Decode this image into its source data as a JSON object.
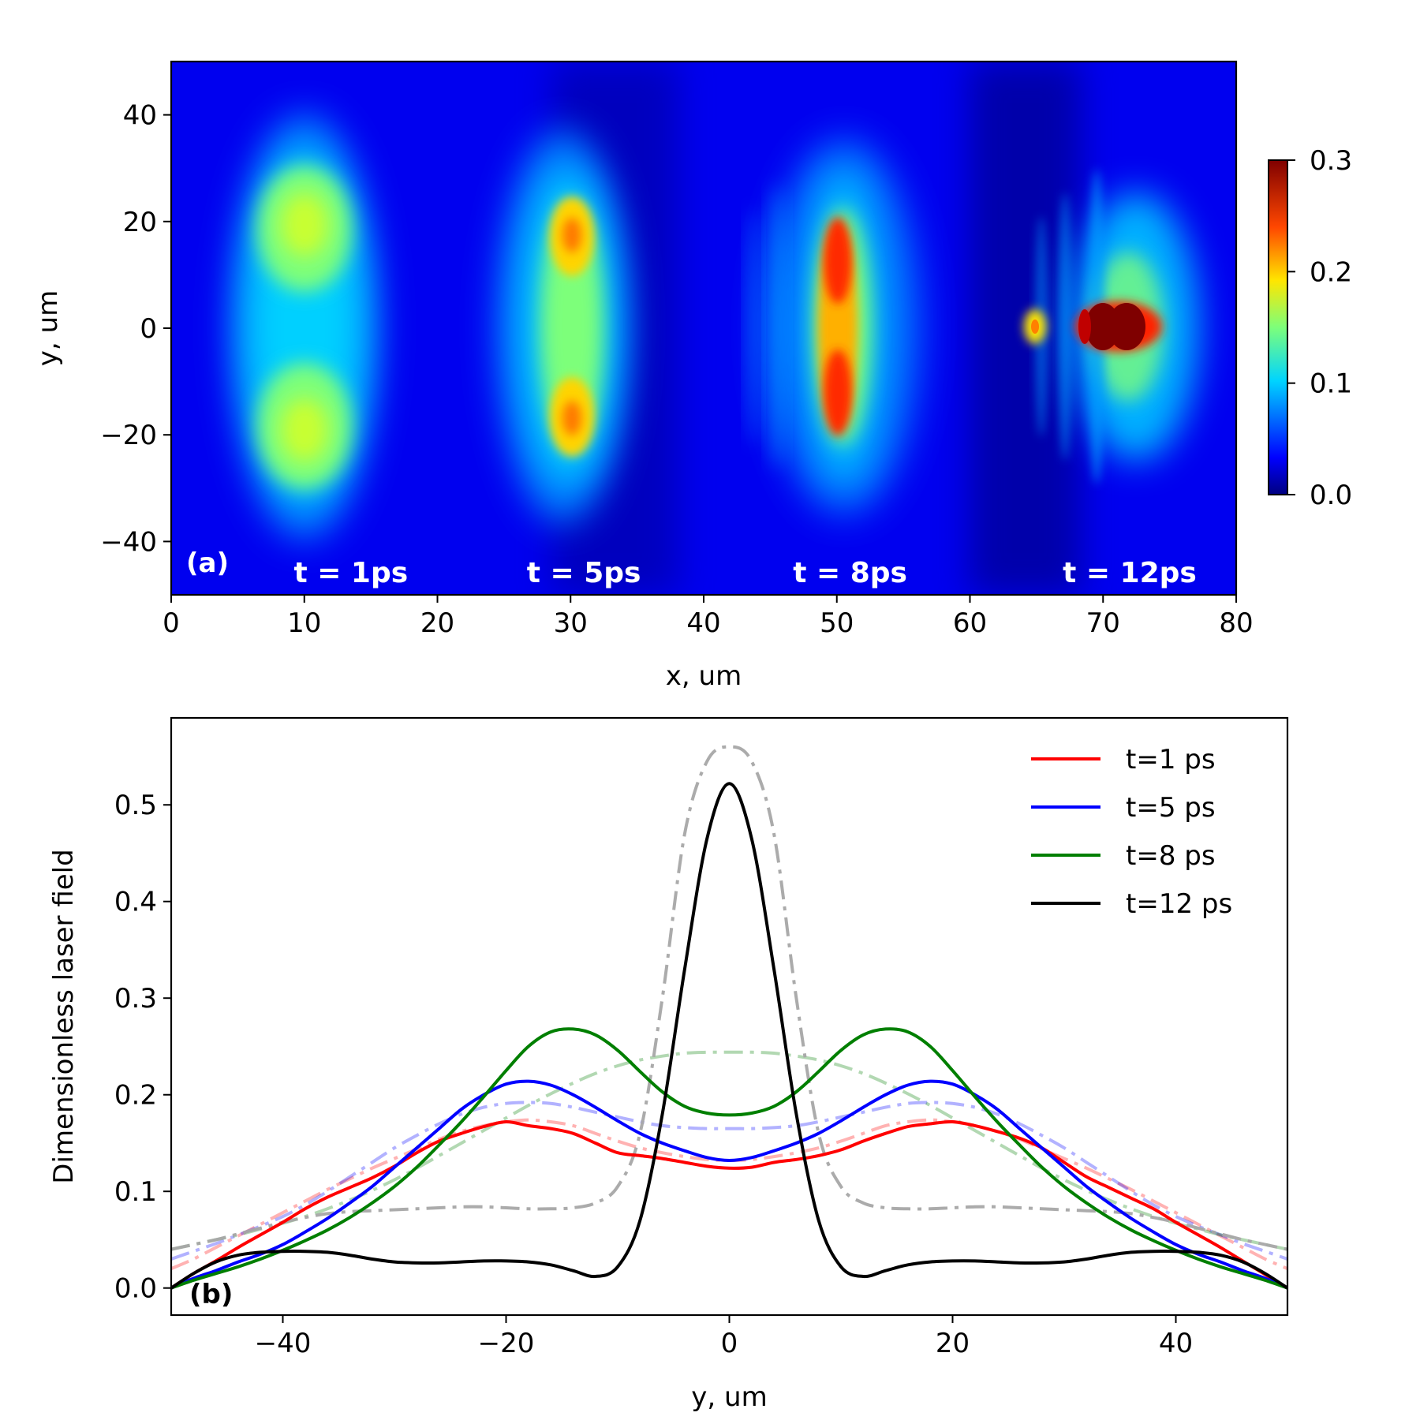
{
  "colors": {
    "t1": "#ff0000",
    "t5": "#0000ff",
    "t8": "#007f00",
    "t12": "#000000",
    "dash_gray": "#a6a6a6",
    "annot_white": "#ffffff"
  },
  "chart_data": [
    {
      "type": "heatmap",
      "panel_label": "(a)",
      "xlabel": "x, um",
      "ylabel": "y, um",
      "xlim": [
        0,
        80
      ],
      "ylim": [
        -50,
        50
      ],
      "xticks": [
        0,
        10,
        20,
        30,
        40,
        50,
        60,
        70,
        80
      ],
      "xtick_labels": [
        "0",
        "10",
        "20",
        "30",
        "40",
        "50",
        "60",
        "70",
        "80"
      ],
      "yticks": [
        40,
        20,
        0,
        -20,
        -40
      ],
      "ytick_labels": [
        "40",
        "20",
        "0",
        "−20",
        "−40"
      ],
      "colormap": "jet",
      "colorbar": {
        "range": [
          0.0,
          0.3
        ],
        "ticks": [
          0.0,
          0.1,
          0.2,
          0.3
        ],
        "tick_labels": [
          "0.0",
          "0.1",
          "0.2",
          "0.3"
        ]
      },
      "annotations": [
        {
          "text": "t = 1ps",
          "x": 13.5
        },
        {
          "text": "t = 5ps",
          "x": 31
        },
        {
          "text": "t = 8ps",
          "x": 51
        },
        {
          "text": "t = 12ps",
          "x": 72
        }
      ],
      "pulses": [
        {
          "t": "1 ps",
          "x_center": 10,
          "lobe_y": [
            20,
            -20
          ],
          "peak": 0.17
        },
        {
          "t": "5 ps",
          "x_center": 30,
          "lobe_y": [
            17,
            -17
          ],
          "peak": 0.22
        },
        {
          "t": "8 ps",
          "x_center": 50,
          "lobe_y": [
            13,
            -13
          ],
          "peak": 0.27
        },
        {
          "t": "12 ps",
          "x_center": 71,
          "lobe_y": [
            0
          ],
          "peak": 0.52
        }
      ]
    },
    {
      "type": "line",
      "panel_label": "(b)",
      "xlabel": "y, um",
      "ylabel": "Dimensionless laser field",
      "xlim": [
        -50,
        50
      ],
      "ylim": [
        -0.028,
        0.59
      ],
      "xticks": [
        -40,
        -20,
        0,
        20,
        40
      ],
      "xtick_labels": [
        "−40",
        "−20",
        "0",
        "20",
        "40"
      ],
      "yticks": [
        0.0,
        0.1,
        0.2,
        0.3,
        0.4,
        0.5
      ],
      "ytick_labels": [
        "0.0",
        "0.1",
        "0.2",
        "0.3",
        "0.4",
        "0.5"
      ],
      "legend": "top-right",
      "x": [
        -50,
        -48,
        -46,
        -44,
        -42,
        -40,
        -38,
        -36,
        -34,
        -32,
        -30,
        -28,
        -26,
        -24,
        -22,
        -20,
        -18,
        -16,
        -14,
        -12,
        -10,
        -8,
        -6,
        -4,
        -2,
        0,
        2,
        4,
        6,
        8,
        10,
        12,
        14,
        16,
        18,
        20,
        22,
        24,
        26,
        28,
        30,
        32,
        34,
        36,
        38,
        40,
        42,
        44,
        46,
        48,
        50
      ],
      "series": [
        {
          "name": "t=1 ps",
          "style": "solid",
          "color_key": "t1",
          "values": [
            0.0,
            0.015,
            0.028,
            0.042,
            0.055,
            0.068,
            0.082,
            0.094,
            0.104,
            0.114,
            0.126,
            0.14,
            0.152,
            0.16,
            0.167,
            0.172,
            0.168,
            0.165,
            0.16,
            0.15,
            0.14,
            0.137,
            0.134,
            0.13,
            0.126,
            0.124,
            0.125,
            0.13,
            0.133,
            0.137,
            0.143,
            0.152,
            0.16,
            0.167,
            0.17,
            0.172,
            0.168,
            0.162,
            0.155,
            0.145,
            0.13,
            0.115,
            0.104,
            0.093,
            0.082,
            0.068,
            0.055,
            0.042,
            0.028,
            0.014,
            0.0
          ]
        },
        {
          "name": "t=5 ps",
          "style": "solid",
          "color_key": "t5",
          "values": [
            0.0,
            0.01,
            0.018,
            0.027,
            0.035,
            0.045,
            0.058,
            0.072,
            0.088,
            0.105,
            0.125,
            0.145,
            0.165,
            0.185,
            0.2,
            0.211,
            0.214,
            0.21,
            0.2,
            0.187,
            0.173,
            0.16,
            0.15,
            0.142,
            0.135,
            0.132,
            0.135,
            0.142,
            0.15,
            0.16,
            0.173,
            0.187,
            0.2,
            0.21,
            0.214,
            0.211,
            0.2,
            0.185,
            0.165,
            0.145,
            0.125,
            0.105,
            0.088,
            0.072,
            0.058,
            0.045,
            0.035,
            0.027,
            0.018,
            0.01,
            0.0
          ]
        },
        {
          "name": "t=8 ps",
          "style": "solid",
          "color_key": "t8",
          "values": [
            0.0,
            0.008,
            0.015,
            0.022,
            0.03,
            0.039,
            0.049,
            0.06,
            0.073,
            0.088,
            0.105,
            0.125,
            0.148,
            0.172,
            0.198,
            0.225,
            0.25,
            0.265,
            0.268,
            0.262,
            0.246,
            0.224,
            0.203,
            0.188,
            0.181,
            0.179,
            0.181,
            0.188,
            0.203,
            0.224,
            0.246,
            0.262,
            0.268,
            0.265,
            0.25,
            0.225,
            0.198,
            0.172,
            0.148,
            0.125,
            0.105,
            0.088,
            0.073,
            0.06,
            0.049,
            0.039,
            0.03,
            0.022,
            0.015,
            0.008,
            0.0
          ]
        },
        {
          "name": "t=12 ps",
          "style": "solid",
          "color_key": "t12",
          "values": [
            0.0,
            0.015,
            0.027,
            0.034,
            0.037,
            0.038,
            0.038,
            0.037,
            0.034,
            0.03,
            0.027,
            0.026,
            0.026,
            0.027,
            0.028,
            0.028,
            0.027,
            0.024,
            0.018,
            0.012,
            0.022,
            0.07,
            0.18,
            0.33,
            0.465,
            0.522,
            0.465,
            0.33,
            0.18,
            0.07,
            0.022,
            0.012,
            0.018,
            0.024,
            0.027,
            0.028,
            0.028,
            0.027,
            0.026,
            0.026,
            0.027,
            0.03,
            0.034,
            0.037,
            0.038,
            0.038,
            0.037,
            0.034,
            0.027,
            0.015,
            0.0
          ]
        },
        {
          "name": "",
          "style": "dashdot",
          "color_key": "t1",
          "opacity": 0.3,
          "values": [
            0.02,
            0.03,
            0.042,
            0.054,
            0.066,
            0.078,
            0.09,
            0.102,
            0.113,
            0.124,
            0.134,
            0.144,
            0.154,
            0.162,
            0.168,
            0.172,
            0.174,
            0.172,
            0.168,
            0.16,
            0.152,
            0.145,
            0.14,
            0.136,
            0.133,
            0.132,
            0.133,
            0.136,
            0.14,
            0.145,
            0.152,
            0.16,
            0.168,
            0.172,
            0.174,
            0.172,
            0.168,
            0.162,
            0.154,
            0.144,
            0.134,
            0.124,
            0.113,
            0.102,
            0.09,
            0.078,
            0.066,
            0.054,
            0.042,
            0.03,
            0.02
          ]
        },
        {
          "name": "",
          "style": "dashdot",
          "color_key": "t5",
          "opacity": 0.3,
          "values": [
            0.03,
            0.038,
            0.046,
            0.055,
            0.064,
            0.074,
            0.086,
            0.1,
            0.115,
            0.13,
            0.145,
            0.158,
            0.17,
            0.18,
            0.187,
            0.191,
            0.192,
            0.191,
            0.187,
            0.182,
            0.177,
            0.172,
            0.168,
            0.166,
            0.165,
            0.165,
            0.165,
            0.166,
            0.168,
            0.172,
            0.177,
            0.182,
            0.187,
            0.191,
            0.192,
            0.191,
            0.187,
            0.18,
            0.17,
            0.158,
            0.145,
            0.13,
            0.115,
            0.1,
            0.086,
            0.074,
            0.064,
            0.055,
            0.046,
            0.038,
            0.03
          ]
        },
        {
          "name": "",
          "style": "dashdot",
          "color_key": "t8",
          "opacity": 0.3,
          "values": [
            0.04,
            0.045,
            0.05,
            0.055,
            0.061,
            0.067,
            0.074,
            0.082,
            0.091,
            0.101,
            0.112,
            0.124,
            0.137,
            0.15,
            0.163,
            0.176,
            0.189,
            0.201,
            0.212,
            0.222,
            0.23,
            0.236,
            0.24,
            0.243,
            0.244,
            0.244,
            0.244,
            0.243,
            0.24,
            0.236,
            0.23,
            0.222,
            0.212,
            0.201,
            0.189,
            0.176,
            0.163,
            0.15,
            0.137,
            0.124,
            0.112,
            0.101,
            0.091,
            0.082,
            0.074,
            0.067,
            0.061,
            0.055,
            0.05,
            0.045,
            0.04
          ]
        },
        {
          "name": "",
          "style": "dashdot",
          "color_key": "t12",
          "opacity": 0.3,
          "values": [
            0.04,
            0.045,
            0.05,
            0.056,
            0.062,
            0.068,
            0.073,
            0.077,
            0.079,
            0.08,
            0.081,
            0.082,
            0.083,
            0.084,
            0.084,
            0.083,
            0.082,
            0.082,
            0.083,
            0.088,
            0.105,
            0.16,
            0.3,
            0.47,
            0.545,
            0.56,
            0.545,
            0.47,
            0.3,
            0.16,
            0.105,
            0.088,
            0.083,
            0.082,
            0.082,
            0.083,
            0.084,
            0.084,
            0.083,
            0.082,
            0.081,
            0.08,
            0.079,
            0.077,
            0.073,
            0.068,
            0.062,
            0.056,
            0.05,
            0.045,
            0.04
          ]
        }
      ]
    }
  ]
}
